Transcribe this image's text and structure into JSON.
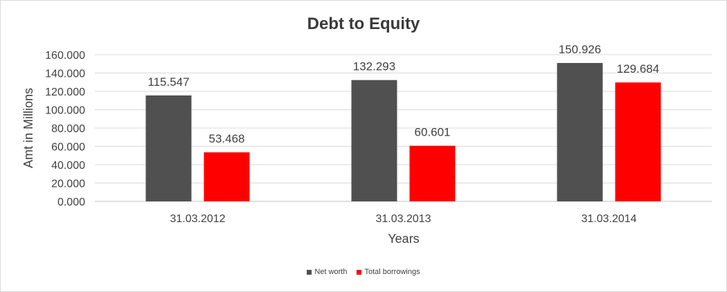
{
  "chart_data": {
    "type": "bar",
    "title": "Debt to Equity",
    "xlabel": "Years",
    "ylabel": "Amt in Millions",
    "categories": [
      "31.03.2012",
      "31.03.2013",
      "31.03.2014"
    ],
    "series": [
      {
        "name": "Net worth",
        "values": [
          115.547,
          132.293,
          150.926
        ],
        "value_labels": [
          "115.547",
          "132.293",
          "150.926"
        ],
        "color": "#505050"
      },
      {
        "name": "Total borrowings",
        "values": [
          53.468,
          60.601,
          129.684
        ],
        "value_labels": [
          "53.468",
          "60.601",
          "129.684"
        ],
        "color": "#ff0000"
      }
    ],
    "ylim": [
      0,
      160
    ],
    "yticks": [
      0,
      20,
      40,
      60,
      80,
      100,
      120,
      140,
      160
    ],
    "ytick_labels": [
      "0.000",
      "20.000",
      "40.000",
      "60.000",
      "80.000",
      "100.000",
      "120.000",
      "140.000",
      "160.000"
    ],
    "grid": true,
    "legend_position": "bottom"
  }
}
